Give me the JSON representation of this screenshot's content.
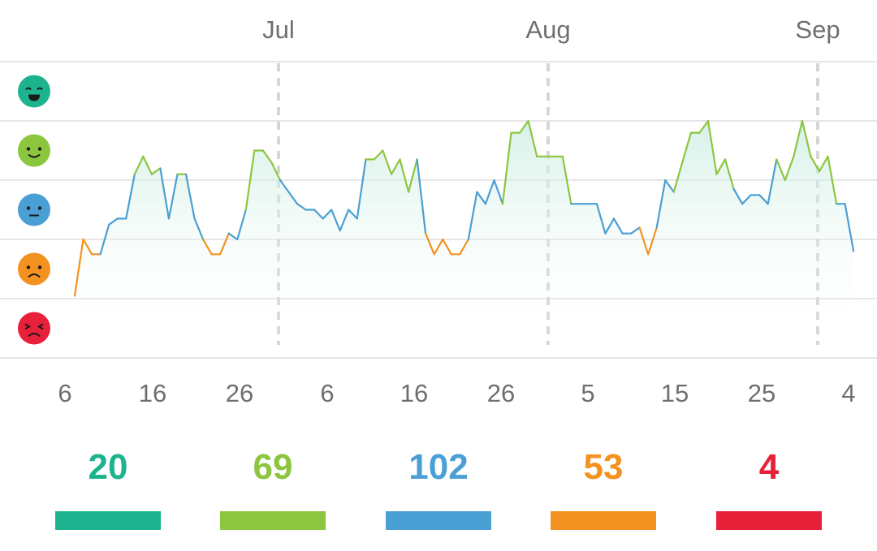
{
  "colors": {
    "great": "#1db38e",
    "good": "#8cc63f",
    "meh": "#4a9fd4",
    "bad": "#f39220",
    "awful": "#e8203a",
    "axis_text": "#6f6f6f",
    "grid": "#dddddd"
  },
  "moods": [
    {
      "key": "great",
      "icon": "laughing-face-icon"
    },
    {
      "key": "good",
      "icon": "smiling-face-icon"
    },
    {
      "key": "meh",
      "icon": "neutral-face-icon"
    },
    {
      "key": "bad",
      "icon": "frowning-face-icon"
    },
    {
      "key": "awful",
      "icon": "angry-face-icon"
    }
  ],
  "chart_data": {
    "type": "line",
    "month_labels": [
      "Jul",
      "Aug",
      "Sep"
    ],
    "day_tick_labels": [
      "6",
      "16",
      "26",
      "6",
      "16",
      "26",
      "5",
      "15",
      "25",
      "4"
    ],
    "y_levels": [
      "awful",
      "bad",
      "meh",
      "good",
      "great"
    ],
    "ylim": [
      1,
      5
    ],
    "mood_values": [
      1.55,
      2.5,
      2.25,
      2.25,
      2.75,
      2.85,
      2.85,
      3.6,
      3.9,
      3.6,
      3.7,
      2.85,
      3.6,
      3.6,
      2.85,
      2.5,
      2.25,
      2.25,
      2.6,
      2.5,
      3.0,
      4.0,
      4.0,
      3.8,
      3.5,
      3.3,
      3.1,
      3.0,
      3.0,
      2.85,
      3.0,
      2.65,
      3.0,
      2.85,
      3.85,
      3.85,
      4.0,
      3.6,
      3.85,
      3.3,
      3.85,
      2.6,
      2.25,
      2.5,
      2.25,
      2.25,
      2.5,
      3.3,
      3.1,
      3.5,
      3.1,
      4.3,
      4.3,
      4.5,
      3.9,
      3.9,
      3.9,
      3.9,
      3.1,
      3.1,
      3.1,
      3.1,
      2.6,
      2.85,
      2.6,
      2.6,
      2.7,
      2.25,
      2.7,
      3.5,
      3.3,
      3.8,
      4.3,
      4.3,
      4.5,
      3.6,
      3.85,
      3.35,
      3.1,
      3.25,
      3.25,
      3.1,
      3.85,
      3.5,
      3.9,
      4.5,
      3.9,
      3.65,
      3.9,
      3.1,
      3.1,
      2.3
    ],
    "summary_counts": [
      20,
      69,
      102,
      53,
      4
    ],
    "grid": true,
    "legend": "left"
  }
}
